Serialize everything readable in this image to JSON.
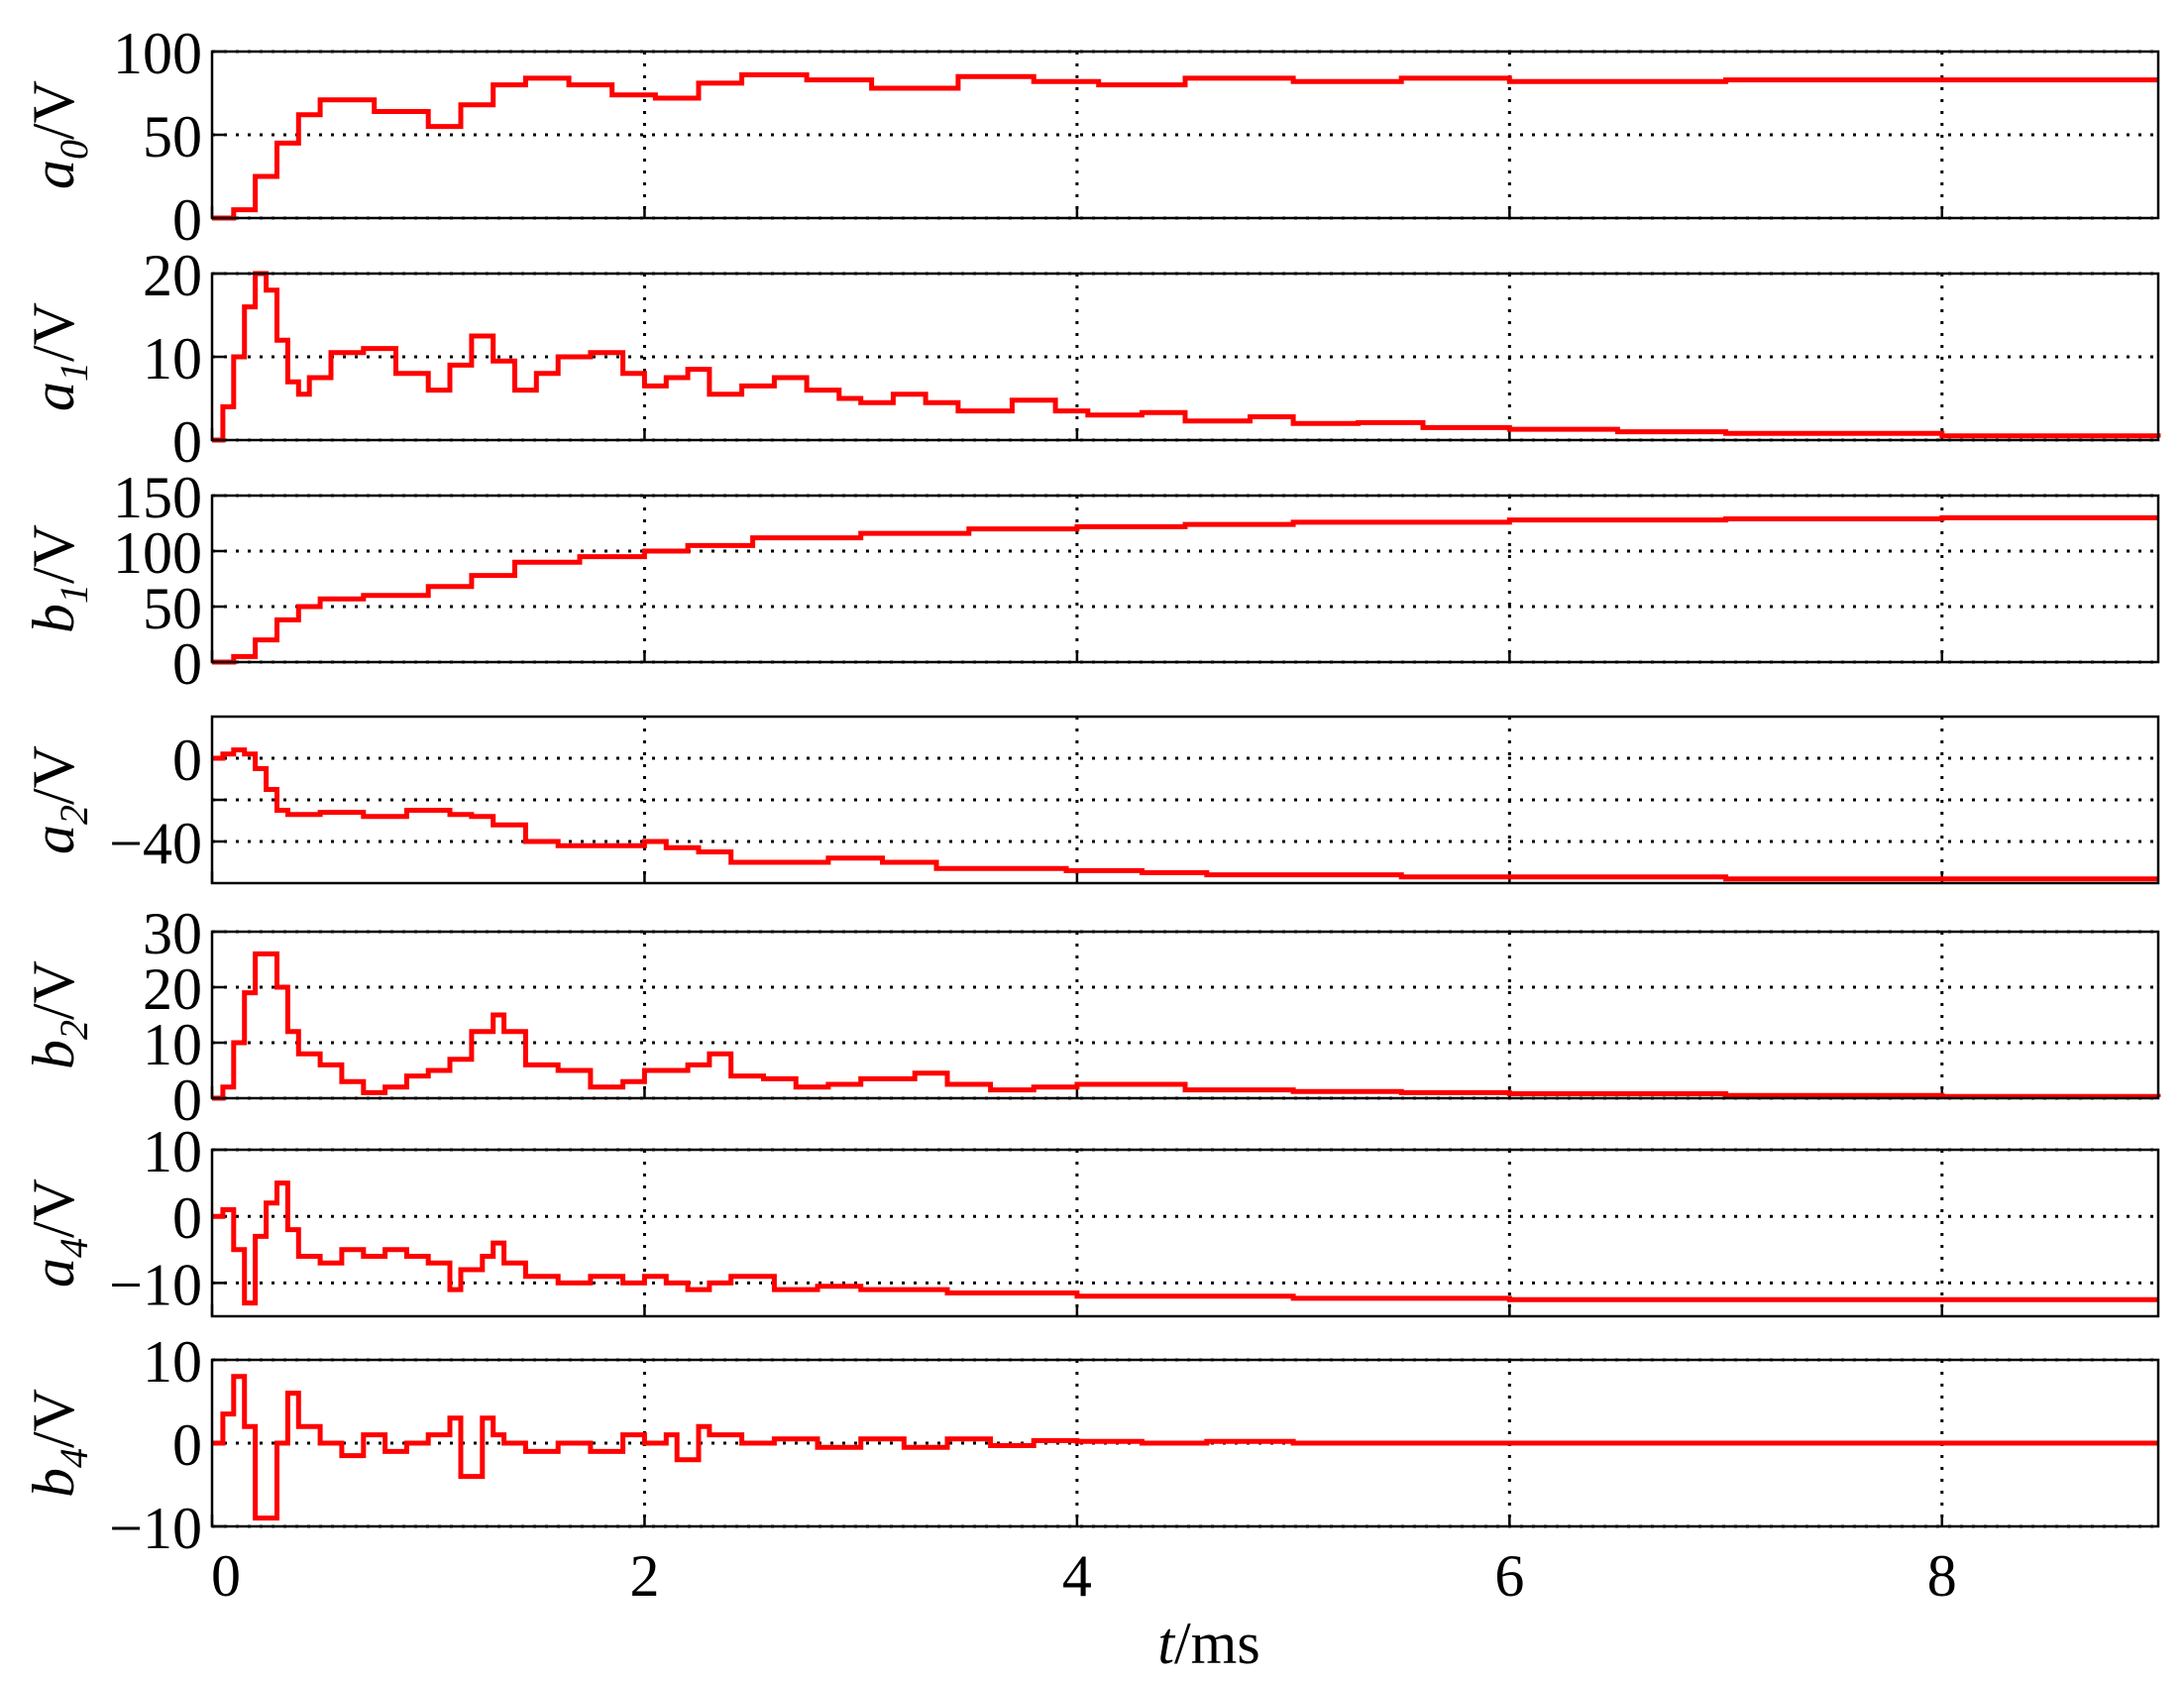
{
  "colors": {
    "trace": "#ff0000",
    "frame": "#000000",
    "grid": "#000000",
    "background": "#ffffff"
  },
  "x_axis": {
    "label_var": "t",
    "label_unit": "/ms",
    "ticks": [
      0,
      2,
      4,
      6,
      8
    ],
    "tick_labels": [
      "0",
      "2",
      "4",
      "6",
      "8"
    ],
    "range": [
      0,
      9
    ]
  },
  "chart_data": [
    {
      "type": "line",
      "step": true,
      "grid": true,
      "ylabel_var": "a",
      "ylabel_sub": "0",
      "ylabel_unit": "/V",
      "ylim": [
        0,
        100
      ],
      "yticks": [
        0,
        50,
        100
      ],
      "ytick_labels": [
        "0",
        "50",
        "100"
      ],
      "x": [
        0,
        0.1,
        0.2,
        0.3,
        0.4,
        0.5,
        0.75,
        1.0,
        1.15,
        1.3,
        1.45,
        1.65,
        1.85,
        2.05,
        2.25,
        2.45,
        2.75,
        3.05,
        3.45,
        3.8,
        4.1,
        4.5,
        5.0,
        5.5,
        6.0,
        7.0,
        8.0,
        9.0
      ],
      "y": [
        0,
        5,
        25,
        45,
        62,
        71,
        64,
        55,
        68,
        80,
        84,
        80,
        74,
        72,
        81,
        86,
        83,
        78,
        85,
        82,
        80,
        84,
        82,
        84,
        82,
        83,
        83,
        83
      ]
    },
    {
      "type": "line",
      "step": true,
      "grid": true,
      "ylabel_var": "a",
      "ylabel_sub": "1",
      "ylabel_unit": "/V",
      "ylim": [
        0,
        20
      ],
      "yticks": [
        0,
        10,
        20
      ],
      "ytick_labels": [
        "0",
        "10",
        "20"
      ],
      "x": [
        0,
        0.05,
        0.1,
        0.15,
        0.2,
        0.25,
        0.3,
        0.35,
        0.4,
        0.45,
        0.55,
        0.7,
        0.85,
        1.0,
        1.1,
        1.2,
        1.3,
        1.4,
        1.5,
        1.6,
        1.75,
        1.9,
        2.0,
        2.1,
        2.2,
        2.3,
        2.45,
        2.6,
        2.75,
        2.9,
        3.0,
        3.15,
        3.3,
        3.45,
        3.7,
        3.9,
        4.05,
        4.3,
        4.5,
        4.8,
        5.0,
        5.3,
        5.6,
        6.0,
        6.5,
        7.0,
        8.0,
        9.0
      ],
      "y": [
        0,
        4,
        10,
        16,
        20,
        18,
        12,
        7,
        5.5,
        7.5,
        10.5,
        11,
        8,
        6,
        9,
        12.5,
        9.5,
        6,
        8,
        10,
        10.5,
        8,
        6.5,
        7.5,
        8.5,
        5.5,
        6.5,
        7.5,
        6,
        5,
        4.5,
        5.5,
        4.5,
        3.5,
        4.8,
        3.5,
        3,
        3.3,
        2.3,
        2.8,
        2,
        2.1,
        1.5,
        1.3,
        1,
        0.8,
        0.5,
        0.3
      ]
    },
    {
      "type": "line",
      "step": true,
      "grid": true,
      "ylabel_var": "b",
      "ylabel_sub": "1",
      "ylabel_unit": "/V",
      "ylim": [
        0,
        150
      ],
      "yticks": [
        0,
        50,
        100,
        150
      ],
      "ytick_labels": [
        "0",
        "50",
        "100",
        "150"
      ],
      "x": [
        0,
        0.1,
        0.2,
        0.3,
        0.4,
        0.5,
        0.7,
        1.0,
        1.2,
        1.4,
        1.7,
        2.0,
        2.2,
        2.5,
        3.0,
        3.5,
        4.0,
        4.5,
        5.0,
        6.0,
        7.0,
        8.0,
        9.0
      ],
      "y": [
        0,
        5,
        20,
        38,
        50,
        57,
        60,
        68,
        78,
        90,
        95,
        100,
        105,
        112,
        116,
        120,
        122,
        124,
        126,
        128,
        129,
        130,
        130
      ]
    },
    {
      "type": "line",
      "step": true,
      "grid": true,
      "ylabel_var": "a",
      "ylabel_sub": "2",
      "ylabel_unit": "/V",
      "ylim": [
        -60,
        20
      ],
      "yticks": [
        0,
        -20,
        -40
      ],
      "ytick_labels": [
        "0",
        "",
        "−40"
      ],
      "x": [
        0,
        0.05,
        0.1,
        0.15,
        0.2,
        0.25,
        0.3,
        0.35,
        0.5,
        0.7,
        0.9,
        1.1,
        1.2,
        1.3,
        1.45,
        1.6,
        1.8,
        2.0,
        2.1,
        2.25,
        2.4,
        2.6,
        2.85,
        3.1,
        3.35,
        3.7,
        3.95,
        4.3,
        4.6,
        5.0,
        5.5,
        6.0,
        7.0,
        8.0,
        9.0
      ],
      "y": [
        0,
        2,
        4,
        2,
        -5,
        -15,
        -25,
        -27,
        -26,
        -28,
        -25,
        -27,
        -28,
        -32,
        -40,
        -42,
        -42,
        -40,
        -43,
        -45,
        -50,
        -50,
        -48,
        -50,
        -53,
        -53,
        -54,
        -55,
        -56,
        -56,
        -57,
        -57,
        -58,
        -58,
        -58
      ]
    },
    {
      "type": "line",
      "step": true,
      "grid": true,
      "ylabel_var": "b",
      "ylabel_sub": "2",
      "ylabel_unit": "/V",
      "ylim": [
        0,
        30
      ],
      "yticks": [
        0,
        10,
        20,
        30
      ],
      "ytick_labels": [
        "0",
        "10",
        "20",
        "30"
      ],
      "x": [
        0,
        0.05,
        0.1,
        0.15,
        0.2,
        0.25,
        0.3,
        0.35,
        0.4,
        0.5,
        0.6,
        0.7,
        0.8,
        0.9,
        1.0,
        1.1,
        1.2,
        1.3,
        1.35,
        1.45,
        1.6,
        1.75,
        1.9,
        2.0,
        2.1,
        2.2,
        2.3,
        2.4,
        2.55,
        2.7,
        2.85,
        3.0,
        3.1,
        3.25,
        3.4,
        3.6,
        3.8,
        4.0,
        4.2,
        4.5,
        5.0,
        5.5,
        6.0,
        7.0,
        8.0,
        9.0
      ],
      "y": [
        0,
        2,
        10,
        19,
        26,
        26,
        20,
        12,
        8,
        6,
        3,
        1,
        2,
        4,
        5,
        7,
        12,
        15,
        12,
        6,
        5,
        2,
        3,
        5,
        5,
        6,
        8,
        4,
        3.5,
        2,
        2.5,
        3.5,
        3.5,
        4.5,
        2.5,
        1.5,
        2,
        2.5,
        2.5,
        1.5,
        1.2,
        1,
        0.8,
        0.5,
        0.3,
        0.2
      ]
    },
    {
      "type": "line",
      "step": true,
      "grid": true,
      "ylabel_var": "a",
      "ylabel_sub": "4",
      "ylabel_unit": "/V",
      "ylim": [
        -15,
        10
      ],
      "yticks": [
        10,
        0,
        -10
      ],
      "ytick_labels": [
        "10",
        "0",
        "−10"
      ],
      "x": [
        0,
        0.05,
        0.1,
        0.15,
        0.2,
        0.25,
        0.3,
        0.35,
        0.4,
        0.5,
        0.6,
        0.7,
        0.8,
        0.9,
        1.0,
        1.1,
        1.15,
        1.25,
        1.3,
        1.35,
        1.45,
        1.6,
        1.75,
        1.9,
        2.0,
        2.1,
        2.2,
        2.3,
        2.4,
        2.6,
        2.8,
        3.0,
        3.2,
        3.4,
        3.6,
        3.8,
        4.0,
        4.2,
        4.5,
        5.0,
        6.0,
        7.0,
        8.0,
        9.0
      ],
      "y": [
        0,
        1,
        -5,
        -13,
        -3,
        2,
        5,
        -2,
        -6,
        -7,
        -5,
        -6,
        -5,
        -6,
        -7,
        -11,
        -8,
        -6,
        -4,
        -7,
        -9,
        -10,
        -9,
        -10,
        -9,
        -10,
        -11,
        -10,
        -9,
        -11,
        -10.5,
        -11,
        -11,
        -11.5,
        -11.5,
        -11.5,
        -12,
        -12,
        -12,
        -12.3,
        -12.5,
        -12.5,
        -12.5,
        -12.5
      ]
    },
    {
      "type": "line",
      "step": true,
      "grid": true,
      "ylabel_var": "b",
      "ylabel_sub": "4",
      "ylabel_unit": "/V",
      "ylim": [
        -10,
        10
      ],
      "yticks": [
        10,
        0,
        -10
      ],
      "ytick_labels": [
        "10",
        "0",
        "−10"
      ],
      "x": [
        0,
        0.05,
        0.1,
        0.15,
        0.2,
        0.25,
        0.3,
        0.35,
        0.4,
        0.5,
        0.6,
        0.7,
        0.8,
        0.9,
        1.0,
        1.1,
        1.15,
        1.25,
        1.3,
        1.35,
        1.45,
        1.6,
        1.75,
        1.9,
        2.0,
        2.1,
        2.15,
        2.25,
        2.3,
        2.45,
        2.6,
        2.8,
        3.0,
        3.2,
        3.4,
        3.6,
        3.8,
        4.0,
        4.3,
        4.6,
        5.0,
        6.0,
        7.0,
        8.0,
        9.0
      ],
      "y": [
        0,
        3.5,
        8,
        2,
        -9,
        -9,
        0,
        6,
        2,
        0,
        -1.5,
        1,
        -1,
        0,
        1,
        3,
        -4,
        3,
        1,
        0,
        -1,
        0,
        -1,
        1,
        0,
        1,
        -2,
        2,
        1,
        0,
        0.5,
        -0.5,
        0.5,
        -0.5,
        0.5,
        -0.3,
        0.3,
        0.2,
        0,
        0.2,
        0,
        0,
        0,
        0,
        0
      ]
    }
  ]
}
